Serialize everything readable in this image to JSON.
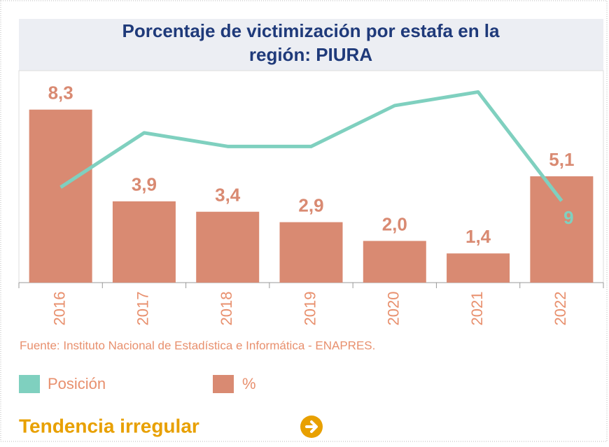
{
  "chart_data": {
    "type": "bar",
    "title": "Porcentaje de victimización por estafa en la región: PIURA",
    "categories": [
      "2016",
      "2017",
      "2018",
      "2019",
      "2020",
      "2021",
      "2022"
    ],
    "ylim": [
      0,
      9.8
    ],
    "y2lim": [
      0,
      15
    ],
    "series": [
      {
        "name": "Posición",
        "type": "line",
        "axis": "y2",
        "color": "#7fd0bf",
        "values": [
          8,
          4,
          5,
          5,
          2,
          1,
          9
        ],
        "value_labels": [
          null,
          null,
          null,
          null,
          null,
          null,
          "9"
        ]
      },
      {
        "name": "%",
        "type": "bar",
        "color": "#d98a72",
        "values": [
          8.3,
          3.9,
          3.4,
          2.9,
          2.0,
          1.4,
          5.1
        ],
        "value_labels": [
          "8,3",
          "3,9",
          "3,4",
          "2,9",
          "2,0",
          "1,4",
          "5,1"
        ]
      }
    ],
    "source": "Fuente: Instituto Nacional de Estadística e Informática - ENAPRES.",
    "trend": "Tendencia irregular"
  }
}
